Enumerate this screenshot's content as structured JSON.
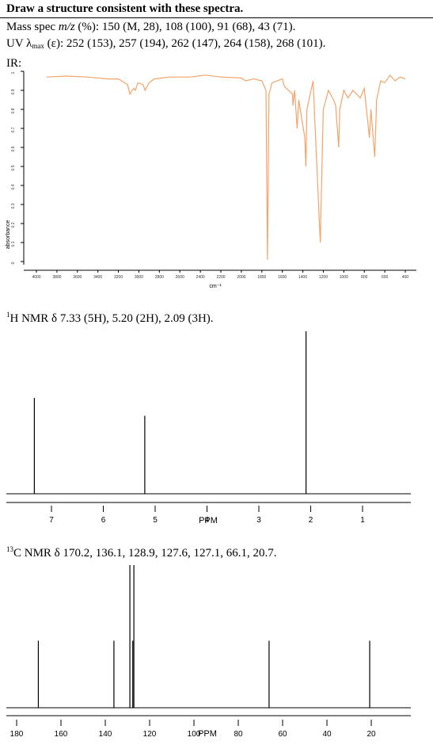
{
  "header": {
    "title": "Draw a structure consistent with these spectra."
  },
  "mass_spec": {
    "prefix": "Mass spec ",
    "mz": "m/z",
    "rest": " (%): 150 (M, 28), 108 (100), 91 (68), 43 (71)."
  },
  "uv": {
    "prefix": "UV λ",
    "sub": "max",
    "rest": " (ε): 252 (153), 257 (194), 262 (147), 264 (158), 268 (101)."
  },
  "ir": {
    "label": "IR:"
  },
  "h_nmr": {
    "sup": "1",
    "text": "H NMR δ 7.33 (5H), 5.20 (2H), 2.09 (3H).",
    "axis_title": "PPM"
  },
  "c_nmr": {
    "sup": "13",
    "text": "C NMR δ 170.2, 136.1, 128.9, 127.6, 127.1, 66.1, 20.7.",
    "axis_title": "PPM"
  },
  "chart_data": [
    {
      "type": "line",
      "name": "IR",
      "xlabel": "cm⁻¹",
      "ylabel": "absorbance",
      "xlim": [
        4000,
        400
      ],
      "ylim": [
        0,
        1.0
      ],
      "x_ticks": [
        4000,
        3800,
        3600,
        3400,
        3200,
        3000,
        2800,
        2600,
        2400,
        2200,
        2000,
        1800,
        1600,
        1400,
        1200,
        1000,
        800,
        600,
        400
      ],
      "y_ticks": [
        0,
        0.1,
        0.2,
        0.3,
        0.4,
        0.5,
        0.6,
        0.7,
        0.8,
        0.9,
        1.0
      ],
      "color": "#f4a46a",
      "points": [
        [
          3900,
          0.03
        ],
        [
          3700,
          0.025
        ],
        [
          3500,
          0.03
        ],
        [
          3300,
          0.04
        ],
        [
          3200,
          0.04
        ],
        [
          3110,
          0.07
        ],
        [
          3088,
          0.12
        ],
        [
          3066,
          0.1
        ],
        [
          3050,
          0.09
        ],
        [
          3034,
          0.1
        ],
        [
          3010,
          0.06
        ],
        [
          2960,
          0.07
        ],
        [
          2940,
          0.1
        ],
        [
          2900,
          0.06
        ],
        [
          2850,
          0.04
        ],
        [
          2700,
          0.03
        ],
        [
          2500,
          0.03
        ],
        [
          2350,
          0.02
        ],
        [
          2200,
          0.03
        ],
        [
          2000,
          0.035
        ],
        [
          1960,
          0.05
        ],
        [
          1880,
          0.04
        ],
        [
          1800,
          0.05
        ],
        [
          1760,
          0.1
        ],
        [
          1745,
          0.99
        ],
        [
          1730,
          0.12
        ],
        [
          1700,
          0.06
        ],
        [
          1600,
          0.04
        ],
        [
          1580,
          0.08
        ],
        [
          1500,
          0.12
        ],
        [
          1497,
          0.18
        ],
        [
          1480,
          0.1
        ],
        [
          1455,
          0.3
        ],
        [
          1440,
          0.15
        ],
        [
          1380,
          0.35
        ],
        [
          1370,
          0.5
        ],
        [
          1360,
          0.2
        ],
        [
          1300,
          0.05
        ],
        [
          1230,
          0.9
        ],
        [
          1200,
          0.2
        ],
        [
          1150,
          0.1
        ],
        [
          1100,
          0.15
        ],
        [
          1080,
          0.18
        ],
        [
          1050,
          0.4
        ],
        [
          1040,
          0.2
        ],
        [
          1000,
          0.1
        ],
        [
          960,
          0.14
        ],
        [
          910,
          0.1
        ],
        [
          840,
          0.14
        ],
        [
          800,
          0.09
        ],
        [
          750,
          0.35
        ],
        [
          735,
          0.2
        ],
        [
          698,
          0.45
        ],
        [
          680,
          0.15
        ],
        [
          640,
          0.05
        ],
        [
          600,
          0.06
        ],
        [
          550,
          0.02
        ],
        [
          500,
          0.05
        ],
        [
          450,
          0.03
        ],
        [
          400,
          0.04
        ]
      ]
    },
    {
      "type": "bar",
      "name": "1H NMR",
      "xlabel": "PPM",
      "xlim": [
        7.6,
        -0.5
      ],
      "x_ticks": [
        7,
        6,
        5,
        4,
        3,
        2,
        1
      ],
      "peaks": [
        {
          "ppm": 7.33,
          "height": 0.59
        },
        {
          "ppm": 5.2,
          "height": 0.48
        },
        {
          "ppm": 2.09,
          "height": 1.0
        }
      ]
    },
    {
      "type": "bar",
      "name": "13C NMR",
      "xlabel": "PPM",
      "xlim": [
        185,
        0
      ],
      "x_ticks": [
        180,
        160,
        140,
        120,
        100,
        80,
        60,
        40,
        20
      ],
      "peaks": [
        {
          "ppm": 170.2,
          "height": 0.47
        },
        {
          "ppm": 136.1,
          "height": 0.47
        },
        {
          "ppm": 128.9,
          "height": 1.0
        },
        {
          "ppm": 127.6,
          "height": 0.47
        },
        {
          "ppm": 127.1,
          "height": 1.0
        },
        {
          "ppm": 66.1,
          "height": 0.47
        },
        {
          "ppm": 20.7,
          "height": 0.47
        }
      ]
    }
  ]
}
